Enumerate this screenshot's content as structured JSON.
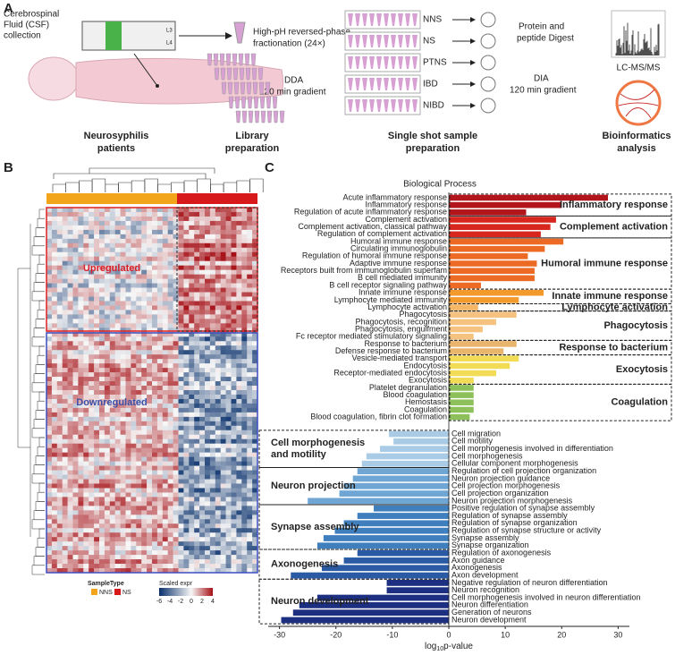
{
  "panel_a": {
    "label": "A",
    "csf": [
      "Cerebrospinal",
      "Fluid (CSF)",
      "collection"
    ],
    "vertebrae": [
      "L3",
      "L4"
    ],
    "fractionation": [
      "High-pH reversed-phase",
      "fractionation (24×)"
    ],
    "dda": [
      "DDA",
      "120 min gradient"
    ],
    "groups": [
      "NNS",
      "NS",
      "PTNS",
      "IBD",
      "NIBD"
    ],
    "digest": [
      "Protein and",
      "peptide Digest"
    ],
    "dia": [
      "DIA",
      "120 min gradient"
    ],
    "lcms": "LC-MS/MS",
    "captions": [
      [
        "Neurosyphilis",
        "patients"
      ],
      [
        "Library",
        "preparation"
      ],
      [
        "Single shot sample",
        "preparation"
      ],
      [
        "Bioinformatics",
        "analysis"
      ]
    ]
  },
  "panel_b": {
    "label": "B",
    "up_label": "Upregulated",
    "down_label": "Downregulated",
    "legend": {
      "sample_title": "SampleType",
      "samples": [
        {
          "name": "NNS",
          "color": "#f2a51a"
        },
        {
          "name": "NS",
          "color": "#d7191c"
        }
      ],
      "scale_title": "Scaled expr",
      "scale_ticks": [
        -6,
        -4,
        -2,
        0,
        2,
        4
      ]
    }
  },
  "chart_data": {
    "type": "bar",
    "label": "C",
    "title": "Biological Process",
    "x_label": {
      "base": "log",
      "sub": "10",
      "rest": "p-value"
    },
    "xlim": [
      -32,
      32
    ],
    "xticks": [
      -30,
      -20,
      -10,
      0,
      10,
      20,
      30
    ],
    "up_term_color": "#e8463c",
    "down_term_color": "#2f6db5",
    "up_groups": [
      {
        "name": "Inflammatory response",
        "color": "#b3151d",
        "categories": [
          "Acute inflammatory response",
          "Inflammatory response",
          "Regulation of acute inflammatory response"
        ],
        "values": [
          28.2,
          20,
          13.7
        ]
      },
      {
        "name": "Complement activation",
        "color": "#d7261e",
        "categories": [
          "Complement activation",
          "Complement activation, classical pathway",
          "Regulation of complement activation"
        ],
        "values": [
          19,
          18,
          16.3
        ]
      },
      {
        "name": "Humoral immune response",
        "color": "#ec6a24",
        "categories": [
          "Humoral immune response",
          "Circulating immunoglobulin",
          "Regulation of humoral immune response",
          "Adaptive immune response",
          "Receptors built from immunoglobulin superfam",
          "B cell mediated immunity",
          "B cell receptor signaling pathway"
        ],
        "values": [
          20.3,
          17,
          14,
          15.6,
          15.2,
          15.2,
          5.7
        ]
      },
      {
        "name": "Innate immune response",
        "color": "#f39a2c",
        "categories": [
          "Innate immune response",
          "Lymphocyte mediated immunity"
        ],
        "values": [
          16.8,
          12.4
        ]
      },
      {
        "name": "Lymphocyte activation",
        "color": "#f5b765",
        "categories": [
          "Lymphocyte activation"
        ],
        "values": [
          5.2
        ]
      },
      {
        "name": "Phagocytosis",
        "color": "#f6c27f",
        "categories": [
          "Phagocytosis",
          "Phagocytosis, recognition",
          "Phagocytosis, engulfment",
          "Fc receptor mediated stimulatory signaling"
        ],
        "values": [
          12,
          8.4,
          6,
          4.4
        ]
      },
      {
        "name": "Response to bacterium",
        "color": "#e9b46c",
        "categories": [
          "Response to bacterium",
          "Defense response to bacterium"
        ],
        "values": [
          12,
          9.7
        ]
      },
      {
        "name": "Exocytosis",
        "color": "#f3dc55",
        "categories": [
          "Vesicle-mediated transport",
          "Endocytosis",
          "Receptor-mediated endocytosis",
          "Exocytosis"
        ],
        "values": [
          12.4,
          10.8,
          8.4,
          4.4
        ]
      },
      {
        "name": "Coagulation",
        "color": "#8dc05a",
        "categories": [
          "Platelet degranulation",
          "Blood coagulation",
          "Hemostasis",
          "Coagulation",
          "Blood coagulation, fibrin clot formation"
        ],
        "values": [
          4.4,
          4.4,
          4.4,
          4.4,
          3.7
        ]
      }
    ],
    "down_groups": [
      {
        "name": [
          "Cell morphogenesis",
          "and motility"
        ],
        "color": "#a9cbe6",
        "categories": [
          "Cell migration",
          "Cell motility",
          "Cell morphogenesis involved in differentiation",
          "Cell morphogenesis",
          "Cellular component morphogenesis"
        ],
        "values": [
          -10.6,
          -9.8,
          -12.2,
          -14.6,
          -15.4
        ]
      },
      {
        "name": [
          "Neuron projection"
        ],
        "color": "#6fa6d4",
        "categories": [
          "Regulation of cell projection organization",
          "Neuron projection guidance",
          "Cell projection morphogenesis",
          "Cell projection organization",
          "Neuron projection morphogenesis"
        ],
        "values": [
          -16.2,
          -17,
          -18.6,
          -19.4,
          -25
        ]
      },
      {
        "name": [
          "Synapse assembly"
        ],
        "color": "#3f7fbe",
        "categories": [
          "Positive regulation of synapse assembly",
          "Regulation of synapse assembly",
          "Regulation of synapse organization",
          "Regulation of synapse structure or activity",
          "Synapse assembly",
          "Synapse organization"
        ],
        "values": [
          -13.3,
          -16.2,
          -18.6,
          -20.2,
          -22.2,
          -23.3
        ]
      },
      {
        "name": [
          "Axonogenesis"
        ],
        "color": "#2a5aa4",
        "categories": [
          "Regulation of axonogenesis",
          "Axon guidance",
          "Axonogenesis",
          "Axon development"
        ],
        "values": [
          -16.2,
          -18.6,
          -22.5,
          -28
        ]
      },
      {
        "name": [
          "Neuron development"
        ],
        "color": "#1d2f80",
        "categories": [
          "Negative regulation of neuron differentiation",
          "Neuron recognition",
          "Cell morphogenesis involved in neuron differentiation",
          "Neuron differentiation",
          "Generation of neurons",
          "Neuron development"
        ],
        "values": [
          -11,
          -11,
          -23.3,
          -26.5,
          -27.6,
          -29.7
        ]
      }
    ]
  }
}
